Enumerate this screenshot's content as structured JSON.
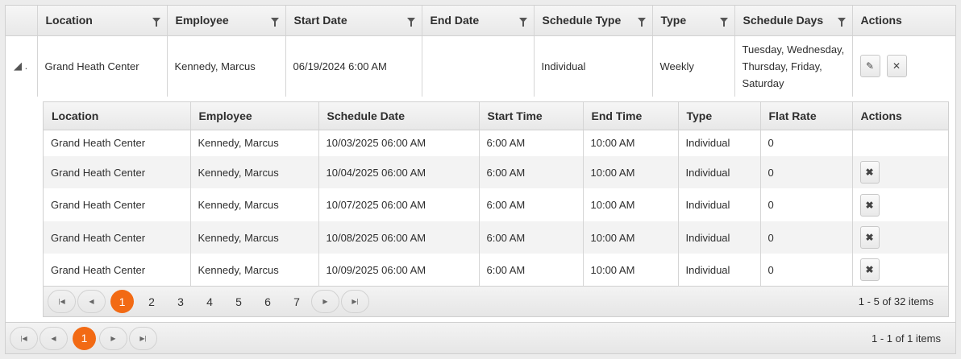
{
  "outer": {
    "columns": [
      "Location",
      "Employee",
      "Start Date",
      "End Date",
      "Schedule Type",
      "Type",
      "Schedule Days",
      "Actions"
    ],
    "row": {
      "location": "Grand Heath Center",
      "employee": "Kennedy, Marcus",
      "start_date": "06/19/2024 6:00 AM",
      "end_date": "",
      "schedule_type": "Individual",
      "type": "Weekly",
      "schedule_days": "Tuesday, Wednesday, Thursday, Friday, Saturday",
      "expand_icon": "◢ ."
    },
    "pager": {
      "current": "1",
      "info": "1 - 1 of 1 items"
    }
  },
  "detail": {
    "columns": [
      "Location",
      "Employee",
      "Schedule Date",
      "Start Time",
      "End Time",
      "Type",
      "Flat Rate",
      "Actions"
    ],
    "rows": [
      [
        "Grand Heath Center",
        "Kennedy, Marcus",
        "10/03/2025 06:00 AM",
        "6:00 AM",
        "10:00 AM",
        "Individual",
        "0",
        false
      ],
      [
        "Grand Heath Center",
        "Kennedy, Marcus",
        "10/04/2025 06:00 AM",
        "6:00 AM",
        "10:00 AM",
        "Individual",
        "0",
        true
      ],
      [
        "Grand Heath Center",
        "Kennedy, Marcus",
        "10/07/2025 06:00 AM",
        "6:00 AM",
        "10:00 AM",
        "Individual",
        "0",
        true
      ],
      [
        "Grand Heath Center",
        "Kennedy, Marcus",
        "10/08/2025 06:00 AM",
        "6:00 AM",
        "10:00 AM",
        "Individual",
        "0",
        true
      ],
      [
        "Grand Heath Center",
        "Kennedy, Marcus",
        "10/09/2025 06:00 AM",
        "6:00 AM",
        "10:00 AM",
        "Individual",
        "0",
        true
      ]
    ],
    "pager": {
      "current": "1",
      "pages": [
        "2",
        "3",
        "4",
        "5",
        "6",
        "7"
      ],
      "info": "1 - 5 of 32 items"
    }
  },
  "colors": {
    "accent": "#f26a14"
  }
}
